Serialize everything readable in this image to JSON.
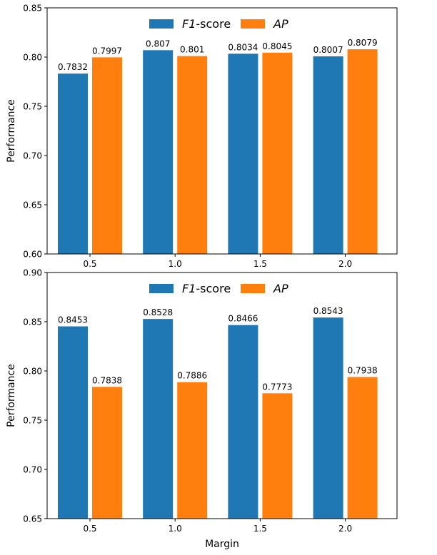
{
  "chart_data": [
    {
      "type": "bar",
      "categories": [
        "0.5",
        "1.0",
        "1.5",
        "2.0"
      ],
      "series": [
        {
          "name": "F1-score",
          "values": [
            0.7832,
            0.807,
            0.8034,
            0.8007
          ],
          "labels": [
            "0.7832",
            "0.807",
            "0.8034",
            "0.8007"
          ],
          "color": "#1f77b4"
        },
        {
          "name": "AP",
          "values": [
            0.7997,
            0.801,
            0.8045,
            0.8079
          ],
          "labels": [
            "0.7997",
            "0.801",
            "0.8045",
            "0.8079"
          ],
          "color": "#ff7f0e"
        }
      ],
      "legend": {
        "items": [
          {
            "prefix": "F1",
            "suffix": "-score"
          },
          {
            "prefix": "AP",
            "suffix": ""
          }
        ],
        "placement": "top-center"
      },
      "title": "",
      "xlabel": "",
      "ylabel": "Performance",
      "ylim": [
        0.6,
        0.85
      ],
      "yticks": [
        "0.60",
        "0.65",
        "0.70",
        "0.75",
        "0.80",
        "0.85"
      ],
      "grid": false
    },
    {
      "type": "bar",
      "categories": [
        "0.5",
        "1.0",
        "1.5",
        "2.0"
      ],
      "series": [
        {
          "name": "F1-score",
          "values": [
            0.8453,
            0.8528,
            0.8466,
            0.8543
          ],
          "labels": [
            "0.8453",
            "0.8528",
            "0.8466",
            "0.8543"
          ],
          "color": "#1f77b4"
        },
        {
          "name": "AP",
          "values": [
            0.7838,
            0.7886,
            0.7773,
            0.7938
          ],
          "labels": [
            "0.7838",
            "0.7886",
            "0.7773",
            "0.7938"
          ],
          "color": "#ff7f0e"
        }
      ],
      "legend": {
        "items": [
          {
            "prefix": "F1",
            "suffix": "-score"
          },
          {
            "prefix": "AP",
            "suffix": ""
          }
        ],
        "placement": "top-center"
      },
      "title": "",
      "xlabel": "Margin",
      "ylabel": "Performance",
      "ylim": [
        0.65,
        0.9
      ],
      "yticks": [
        "0.65",
        "0.70",
        "0.75",
        "0.80",
        "0.85",
        "0.90"
      ],
      "grid": false
    }
  ]
}
